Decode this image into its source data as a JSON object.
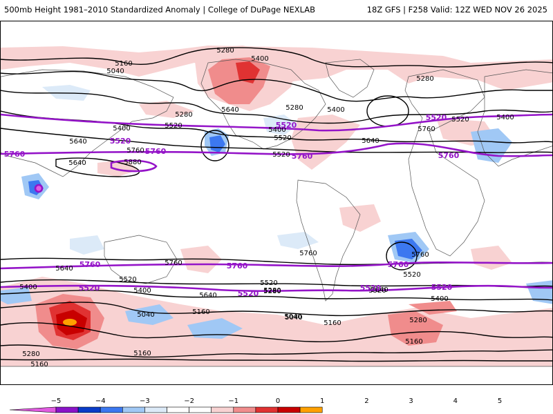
{
  "header": {
    "title_left": "500mb Height 1981–2010 Standardized Anomaly | College of DuPage NEXLAB",
    "title_right": "18Z GFS | F258 Valid: 12Z WED NOV 26 2025"
  },
  "map": {
    "contour_labels_black": [
      "5280",
      "5400",
      "5160",
      "5040",
      "5280",
      "5640",
      "5400",
      "5520",
      "5280",
      "5280",
      "5400",
      "5520",
      "5640",
      "5760",
      "5880",
      "5400",
      "5520",
      "5640",
      "5760",
      "5280",
      "5400",
      "5520",
      "5640",
      "5760",
      "5040",
      "5160",
      "5280",
      "5160",
      "5040",
      "5160",
      "5280",
      "5520",
      "5640",
      "5760",
      "5400",
      "5520",
      "5280",
      "5160",
      "5400",
      "5760",
      "5520",
      "5640",
      "5400",
      "5520",
      "5640",
      "5160",
      "5040"
    ],
    "contour_labels_purple": [
      "5520",
      "5760",
      "5520",
      "5760",
      "5520",
      "5760",
      "5760",
      "5520",
      "5760",
      "5520",
      "5760",
      "5520",
      "5520",
      "5760"
    ]
  },
  "colorbar": {
    "ticks": [
      "−5",
      "−4",
      "−3",
      "−2",
      "−1",
      "0",
      "1",
      "2",
      "3",
      "4",
      "5"
    ],
    "colors": [
      "#e05be0",
      "#8a14c8",
      "#0a3cc8",
      "#3c78f0",
      "#a0c8f5",
      "#dceaf8",
      "#ffffff",
      "#ffffff",
      "#f8d2d2",
      "#f08c8c",
      "#e03232",
      "#c80000",
      "#ffa000"
    ]
  }
}
